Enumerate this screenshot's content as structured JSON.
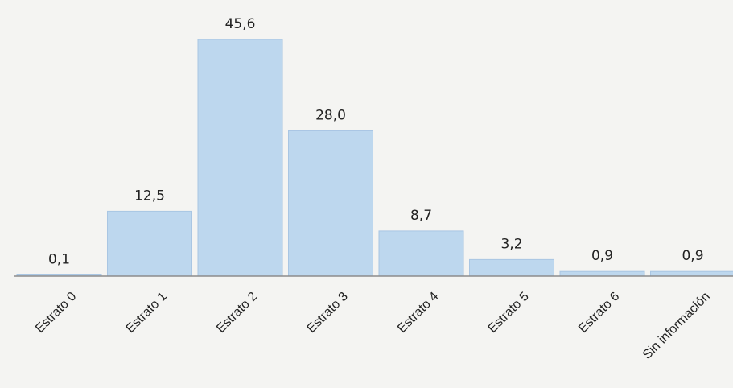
{
  "chart_data": {
    "type": "bar",
    "categories": [
      "Estrato 0",
      "Estrato 1",
      "Estrato 2",
      "Estrato 3",
      "Estrato 4",
      "Estrato 5",
      "Estrato 6",
      "Sin información"
    ],
    "values": [
      0.1,
      12.5,
      45.6,
      28.0,
      8.7,
      3.2,
      0.9,
      0.9
    ],
    "value_labels": [
      "0,1",
      "12,5",
      "45,6",
      "28,0",
      "8,7",
      "3,2",
      "0,9",
      "0,9"
    ],
    "title": "",
    "xlabel": "",
    "ylabel": "",
    "ylim": [
      0,
      50
    ],
    "grid": false,
    "legend": "none",
    "colors": {
      "bar_fill": "#bdd7ee",
      "bar_edge": "#a9c6e3",
      "axis": "#8c8c8c",
      "text": "#222222",
      "background": "#f4f4f2"
    }
  }
}
